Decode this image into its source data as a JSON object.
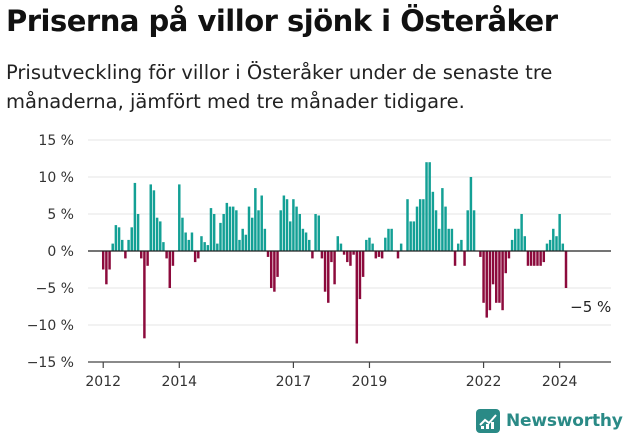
{
  "title": "Priserna på villor sjönk i Österåker",
  "subtitle": "Prisutveckling för villor i Österåker under de senaste tre månaderna, jämfört med tre månader tidigare.",
  "brand": "Newsworthy",
  "colors": {
    "positive": "#13a095",
    "negative": "#8c0a3c",
    "brand": "#2a8a86"
  },
  "chart_data": {
    "type": "bar",
    "ylim": [
      -15,
      15
    ],
    "y_ticks": [
      15,
      10,
      5,
      0,
      -5,
      -10,
      -15
    ],
    "y_tick_labels": [
      "15 %",
      "10 %",
      "5 %",
      "0 %",
      "−5 %",
      "−10 %",
      "−15 %"
    ],
    "x_range": [
      2011.6,
      2025.35
    ],
    "x_ticks": [
      2012,
      2014,
      2017,
      2019,
      2022,
      2024
    ],
    "x_tick_labels": [
      "2012",
      "2014",
      "2017",
      "2019",
      "2022",
      "2024"
    ],
    "grid": true,
    "annotation": {
      "text": "−5 %",
      "x": 2024.75,
      "y": -5
    },
    "series": [
      {
        "values": [
          {
            "x": 2012.0,
            "y": -2.5
          },
          {
            "x": 2012.083,
            "y": -4.5
          },
          {
            "x": 2012.167,
            "y": -2.5
          },
          {
            "x": 2012.25,
            "y": 1.0
          },
          {
            "x": 2012.333,
            "y": 3.5
          },
          {
            "x": 2012.417,
            "y": 3.2
          },
          {
            "x": 2012.5,
            "y": 1.5
          },
          {
            "x": 2012.583,
            "y": -1.0
          },
          {
            "x": 2012.667,
            "y": 1.5
          },
          {
            "x": 2012.75,
            "y": 3.2
          },
          {
            "x": 2012.833,
            "y": 9.2
          },
          {
            "x": 2012.917,
            "y": 5.0
          },
          {
            "x": 2013.0,
            "y": -1.0
          },
          {
            "x": 2013.083,
            "y": -11.8
          },
          {
            "x": 2013.167,
            "y": -2.0
          },
          {
            "x": 2013.25,
            "y": 9.0
          },
          {
            "x": 2013.333,
            "y": 8.2
          },
          {
            "x": 2013.417,
            "y": 4.5
          },
          {
            "x": 2013.5,
            "y": 4.0
          },
          {
            "x": 2013.583,
            "y": 1.2
          },
          {
            "x": 2013.667,
            "y": -1.0
          },
          {
            "x": 2013.75,
            "y": -5.0
          },
          {
            "x": 2013.833,
            "y": -2.0
          },
          {
            "x": 2014.0,
            "y": 9.0
          },
          {
            "x": 2014.083,
            "y": 4.5
          },
          {
            "x": 2014.167,
            "y": 2.5
          },
          {
            "x": 2014.25,
            "y": 1.5
          },
          {
            "x": 2014.333,
            "y": 2.5
          },
          {
            "x": 2014.417,
            "y": -1.5
          },
          {
            "x": 2014.5,
            "y": -1.0
          },
          {
            "x": 2014.583,
            "y": 2.0
          },
          {
            "x": 2014.667,
            "y": 1.2
          },
          {
            "x": 2014.75,
            "y": 0.8
          },
          {
            "x": 2014.833,
            "y": 5.8
          },
          {
            "x": 2014.917,
            "y": 5.0
          },
          {
            "x": 2015.0,
            "y": 1.0
          },
          {
            "x": 2015.083,
            "y": 3.8
          },
          {
            "x": 2015.167,
            "y": 5.0
          },
          {
            "x": 2015.25,
            "y": 6.5
          },
          {
            "x": 2015.333,
            "y": 6.0
          },
          {
            "x": 2015.417,
            "y": 6.0
          },
          {
            "x": 2015.5,
            "y": 5.5
          },
          {
            "x": 2015.583,
            "y": 1.5
          },
          {
            "x": 2015.667,
            "y": 3.0
          },
          {
            "x": 2015.75,
            "y": 2.2
          },
          {
            "x": 2015.833,
            "y": 6.0
          },
          {
            "x": 2015.917,
            "y": 4.5
          },
          {
            "x": 2016.0,
            "y": 8.5
          },
          {
            "x": 2016.083,
            "y": 5.5
          },
          {
            "x": 2016.167,
            "y": 7.5
          },
          {
            "x": 2016.25,
            "y": 3.0
          },
          {
            "x": 2016.333,
            "y": -0.8
          },
          {
            "x": 2016.417,
            "y": -5.0
          },
          {
            "x": 2016.5,
            "y": -5.5
          },
          {
            "x": 2016.583,
            "y": -3.5
          },
          {
            "x": 2016.667,
            "y": 5.5
          },
          {
            "x": 2016.75,
            "y": 7.5
          },
          {
            "x": 2016.833,
            "y": 7.0
          },
          {
            "x": 2016.917,
            "y": 4.0
          },
          {
            "x": 2017.0,
            "y": 7.0
          },
          {
            "x": 2017.083,
            "y": 6.0
          },
          {
            "x": 2017.167,
            "y": 5.0
          },
          {
            "x": 2017.25,
            "y": 3.0
          },
          {
            "x": 2017.333,
            "y": 2.5
          },
          {
            "x": 2017.417,
            "y": 1.5
          },
          {
            "x": 2017.5,
            "y": -1.0
          },
          {
            "x": 2017.583,
            "y": 5.0
          },
          {
            "x": 2017.667,
            "y": 4.8
          },
          {
            "x": 2017.75,
            "y": -1.0
          },
          {
            "x": 2017.833,
            "y": -5.5
          },
          {
            "x": 2017.917,
            "y": -7.0
          },
          {
            "x": 2018.0,
            "y": -1.5
          },
          {
            "x": 2018.083,
            "y": -4.5
          },
          {
            "x": 2018.167,
            "y": 2.0
          },
          {
            "x": 2018.25,
            "y": 1.0
          },
          {
            "x": 2018.333,
            "y": -0.5
          },
          {
            "x": 2018.417,
            "y": -1.5
          },
          {
            "x": 2018.5,
            "y": -2.0
          },
          {
            "x": 2018.583,
            "y": -0.5
          },
          {
            "x": 2018.667,
            "y": -12.5
          },
          {
            "x": 2018.75,
            "y": -6.5
          },
          {
            "x": 2018.833,
            "y": -3.5
          },
          {
            "x": 2018.917,
            "y": 1.5
          },
          {
            "x": 2019.0,
            "y": 1.8
          },
          {
            "x": 2019.083,
            "y": 1.0
          },
          {
            "x": 2019.167,
            "y": -1.0
          },
          {
            "x": 2019.25,
            "y": -0.8
          },
          {
            "x": 2019.333,
            "y": -1.0
          },
          {
            "x": 2019.417,
            "y": 1.8
          },
          {
            "x": 2019.5,
            "y": 3.0
          },
          {
            "x": 2019.583,
            "y": 3.0
          },
          {
            "x": 2019.75,
            "y": -1.0
          },
          {
            "x": 2019.833,
            "y": 1.0
          },
          {
            "x": 2020.0,
            "y": 7.0
          },
          {
            "x": 2020.083,
            "y": 4.0
          },
          {
            "x": 2020.167,
            "y": 4.0
          },
          {
            "x": 2020.25,
            "y": 6.0
          },
          {
            "x": 2020.333,
            "y": 7.0
          },
          {
            "x": 2020.417,
            "y": 7.0
          },
          {
            "x": 2020.5,
            "y": 12.0
          },
          {
            "x": 2020.583,
            "y": 12.0
          },
          {
            "x": 2020.667,
            "y": 8.0
          },
          {
            "x": 2020.75,
            "y": 5.5
          },
          {
            "x": 2020.833,
            "y": 3.0
          },
          {
            "x": 2020.917,
            "y": 8.5
          },
          {
            "x": 2021.0,
            "y": 6.0
          },
          {
            "x": 2021.083,
            "y": 3.0
          },
          {
            "x": 2021.167,
            "y": 3.0
          },
          {
            "x": 2021.25,
            "y": -2.0
          },
          {
            "x": 2021.333,
            "y": 1.0
          },
          {
            "x": 2021.417,
            "y": 1.5
          },
          {
            "x": 2021.5,
            "y": -2.0
          },
          {
            "x": 2021.583,
            "y": 5.5
          },
          {
            "x": 2021.667,
            "y": 10.0
          },
          {
            "x": 2021.75,
            "y": 5.5
          },
          {
            "x": 2021.917,
            "y": -0.8
          },
          {
            "x": 2022.0,
            "y": -7.0
          },
          {
            "x": 2022.083,
            "y": -9.0
          },
          {
            "x": 2022.167,
            "y": -8.0
          },
          {
            "x": 2022.25,
            "y": -4.5
          },
          {
            "x": 2022.333,
            "y": -7.0
          },
          {
            "x": 2022.417,
            "y": -7.0
          },
          {
            "x": 2022.5,
            "y": -8.0
          },
          {
            "x": 2022.583,
            "y": -3.0
          },
          {
            "x": 2022.667,
            "y": -1.0
          },
          {
            "x": 2022.75,
            "y": 1.5
          },
          {
            "x": 2022.833,
            "y": 3.0
          },
          {
            "x": 2022.917,
            "y": 3.0
          },
          {
            "x": 2023.0,
            "y": 5.0
          },
          {
            "x": 2023.083,
            "y": 2.0
          },
          {
            "x": 2023.167,
            "y": -2.0
          },
          {
            "x": 2023.25,
            "y": -2.0
          },
          {
            "x": 2023.333,
            "y": -2.0
          },
          {
            "x": 2023.417,
            "y": -2.0
          },
          {
            "x": 2023.5,
            "y": -2.0
          },
          {
            "x": 2023.583,
            "y": -1.5
          },
          {
            "x": 2023.667,
            "y": 1.0
          },
          {
            "x": 2023.75,
            "y": 1.5
          },
          {
            "x": 2023.833,
            "y": 3.0
          },
          {
            "x": 2023.917,
            "y": 2.0
          },
          {
            "x": 2024.0,
            "y": 5.0
          },
          {
            "x": 2024.083,
            "y": 1.0
          },
          {
            "x": 2024.167,
            "y": -5.0
          }
        ]
      }
    ]
  }
}
